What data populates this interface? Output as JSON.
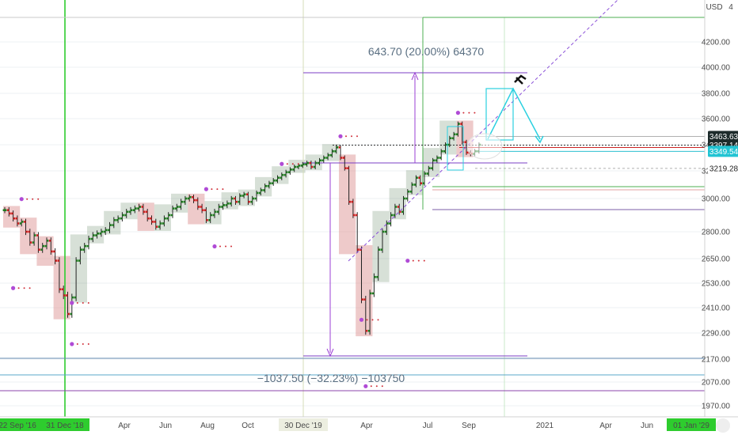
{
  "chart_data": {
    "type": "candlestick",
    "currency": "USD",
    "y_axis_ticks": [
      1970,
      2070,
      2170,
      2290,
      2410,
      2530,
      2650,
      2800,
      3000,
      3200,
      3400,
      3600,
      3800,
      4000,
      4200
    ],
    "y_axis_top_label": "4",
    "ylim": [
      1930,
      4300
    ],
    "x_axis_ticks": [
      "22 Sep '16",
      "31 Dec '18",
      "Apr",
      "Jun",
      "Aug",
      "Oct",
      "30 Dec '19",
      "Apr",
      "Jul",
      "Sep",
      "2021",
      "Apr",
      "Jun",
      "01 Jan '29"
    ],
    "price_labels": [
      {
        "text": "3463.63",
        "value": 3463.63,
        "style": "dark"
      },
      {
        "text": "3397.14",
        "value": 3397.14,
        "style": "dark"
      },
      {
        "text": "3349.54",
        "value": 3349.54,
        "style": "cyan"
      },
      {
        "text": "3219.28",
        "value": 3219.28,
        "style": "light"
      }
    ],
    "annotations": [
      {
        "text": "643.70 (20.00%) 64370",
        "from": 3219,
        "to": 3863
      },
      {
        "text": "−1037.50 (−32.23%) −103750",
        "from": 3219,
        "to": 2182
      }
    ],
    "weekly_closes": [
      2930,
      2910,
      2880,
      2850,
      2860,
      2800,
      2740,
      2780,
      2700,
      2720,
      2750,
      2690,
      2640,
      2500,
      2470,
      2380,
      2460,
      2640,
      2700,
      2720,
      2760,
      2780,
      2790,
      2800,
      2810,
      2840,
      2870,
      2880,
      2900,
      2920,
      2930,
      2940,
      2950,
      2920,
      2880,
      2860,
      2830,
      2850,
      2880,
      2900,
      2940,
      2950,
      2980,
      3000,
      3010,
      2990,
      2950,
      2930,
      2870,
      2900,
      2920,
      2950,
      2960,
      2970,
      3000,
      2980,
      3020,
      3030,
      2980,
      3000,
      3040,
      3060,
      3090,
      3110,
      3130,
      3150,
      3170,
      3190,
      3210,
      3230,
      3240,
      3250,
      3260,
      3230,
      3260,
      3280,
      3300,
      3320,
      3350,
      3380,
      3300,
      3220,
      2980,
      2900,
      2700,
      2450,
      2300,
      2480,
      2560,
      2700,
      2800,
      2850,
      2900,
      2950,
      2920,
      3000,
      3050,
      3100,
      3150,
      3110,
      3180,
      3220,
      3280,
      3300,
      3350,
      3400,
      3450,
      3480,
      3560,
      3420,
      3340,
      3330,
      3350,
      3400
    ]
  }
}
